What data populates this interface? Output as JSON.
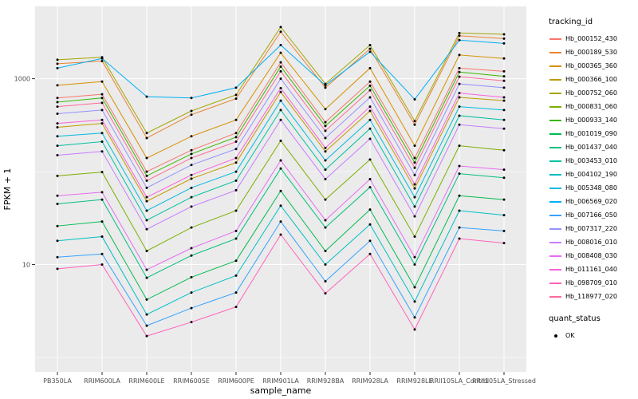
{
  "colors": {
    "panel": "#EBEBEB",
    "grid": "#FFFFFF",
    "tick": "#333333",
    "tick_label": "#4D4D4D",
    "point": "#000000"
  },
  "legend": {
    "tracking_title": "tracking_id",
    "quant_title": "quant_status",
    "quant_items": [
      {
        "label": "OK",
        "marker": "black-point",
        "color": "#000000"
      }
    ]
  },
  "chart_data": {
    "type": "line",
    "title": "",
    "xlabel": "sample_name",
    "ylabel": "FPKM + 1",
    "y_scale": "log10",
    "grid": true,
    "legend_position": "right",
    "ylim": [
      0.7,
      6000
    ],
    "y_ticks": [
      {
        "label": "1000",
        "value": 1000
      },
      {
        "label": "10",
        "value": 10
      }
    ],
    "y_minor_gridlines": [
      1,
      100
    ],
    "categories": [
      "PB350LA",
      "RRIM600LA",
      "RRIM600LE",
      "RRIM600SE",
      "RRIM600PE",
      "RRIM901LA",
      "RRIM928BA",
      "RRIM928LA",
      "RRIM928LE",
      "RRII105LA_Control",
      "RRII105LA_Stressed"
    ],
    "series": [
      {
        "name": "Hb_000152_430",
        "color": "#F8766D",
        "values": [
          620,
          680,
          100,
          170,
          260,
          1500,
          340,
          930,
          140,
          1300,
          1200
        ]
      },
      {
        "name": "Hb_000189_530",
        "color": "#EA8331",
        "values": [
          1450,
          1550,
          230,
          410,
          610,
          3200,
          800,
          2100,
          320,
          2900,
          2700
        ]
      },
      {
        "name": "Hb_000365_360",
        "color": "#D89000",
        "values": [
          850,
          930,
          140,
          240,
          360,
          1900,
          470,
          1300,
          190,
          1800,
          1650
        ]
      },
      {
        "name": "Hb_000366_100",
        "color": "#C09B00",
        "values": [
          300,
          330,
          48,
          84,
          125,
          720,
          165,
          450,
          66,
          630,
          580
        ]
      },
      {
        "name": "Hb_000752_060",
        "color": "#A3A500",
        "values": [
          1600,
          1700,
          260,
          450,
          670,
          3600,
          880,
          2300,
          350,
          3100,
          3000
        ]
      },
      {
        "name": "Hb_000831_060",
        "color": "#7CAE00",
        "values": [
          90,
          99,
          14,
          25,
          38,
          215,
          50,
          135,
          20,
          190,
          170
        ]
      },
      {
        "name": "Hb_000933_140",
        "color": "#39B600",
        "values": [
          560,
          620,
          90,
          155,
          235,
          1350,
          310,
          840,
          125,
          1180,
          1060
        ]
      },
      {
        "name": "Hb_001019_090",
        "color": "#00BB4E",
        "values": [
          26,
          29,
          4.2,
          7.3,
          11,
          62,
          14,
          39,
          5.7,
          55,
          50
        ]
      },
      {
        "name": "Hb_001437_040",
        "color": "#00BF7D",
        "values": [
          45,
          50,
          7.2,
          12.5,
          19,
          108,
          25,
          68,
          10,
          95,
          86
        ]
      },
      {
        "name": "Hb_003453_010",
        "color": "#00C1A3",
        "values": [
          190,
          210,
          30,
          53,
          80,
          460,
          105,
          290,
          42,
          400,
          360
        ]
      },
      {
        "name": "Hb_004102_190",
        "color": "#00BFC4",
        "values": [
          18,
          20,
          2.9,
          5,
          7.6,
          43,
          10,
          27,
          4,
          38,
          34
        ]
      },
      {
        "name": "Hb_005348_080",
        "color": "#00BAE0",
        "values": [
          240,
          260,
          38,
          67,
          100,
          580,
          132,
          360,
          53,
          500,
          460
        ]
      },
      {
        "name": "Hb_006569_020",
        "color": "#00B0F6",
        "values": [
          1300,
          1650,
          640,
          620,
          800,
          2300,
          850,
          1950,
          600,
          2600,
          2400
        ]
      },
      {
        "name": "Hb_007166_050",
        "color": "#35A2FF",
        "values": [
          12,
          13,
          2.2,
          3.4,
          5,
          29,
          6.6,
          18,
          2.7,
          25,
          23
        ]
      },
      {
        "name": "Hb_007317_220",
        "color": "#9590FF",
        "values": [
          420,
          460,
          67,
          118,
          175,
          1000,
          230,
          630,
          92,
          880,
          800
        ]
      },
      {
        "name": "Hb_008016_010",
        "color": "#C77CFF",
        "values": [
          150,
          165,
          24,
          42,
          63,
          360,
          83,
          225,
          33,
          320,
          290
        ]
      },
      {
        "name": "Hb_008408_030",
        "color": "#E76BF3",
        "values": [
          55,
          60,
          8.8,
          15,
          23,
          132,
          30,
          83,
          12,
          115,
          105
        ]
      },
      {
        "name": "Hb_011161_040",
        "color": "#FA62DB",
        "values": [
          330,
          360,
          53,
          92,
          140,
          790,
          180,
          500,
          73,
          700,
          630
        ]
      },
      {
        "name": "Hb_098709_010",
        "color": "#FF62BC",
        "values": [
          9,
          10,
          1.7,
          2.4,
          3.5,
          21,
          4.9,
          13,
          2,
          19,
          17
        ]
      },
      {
        "name": "Hb_118977_020",
        "color": "#FF6A98",
        "values": [
          500,
          550,
          80,
          140,
          210,
          1200,
          275,
          750,
          110,
          1050,
          950
        ]
      }
    ]
  }
}
